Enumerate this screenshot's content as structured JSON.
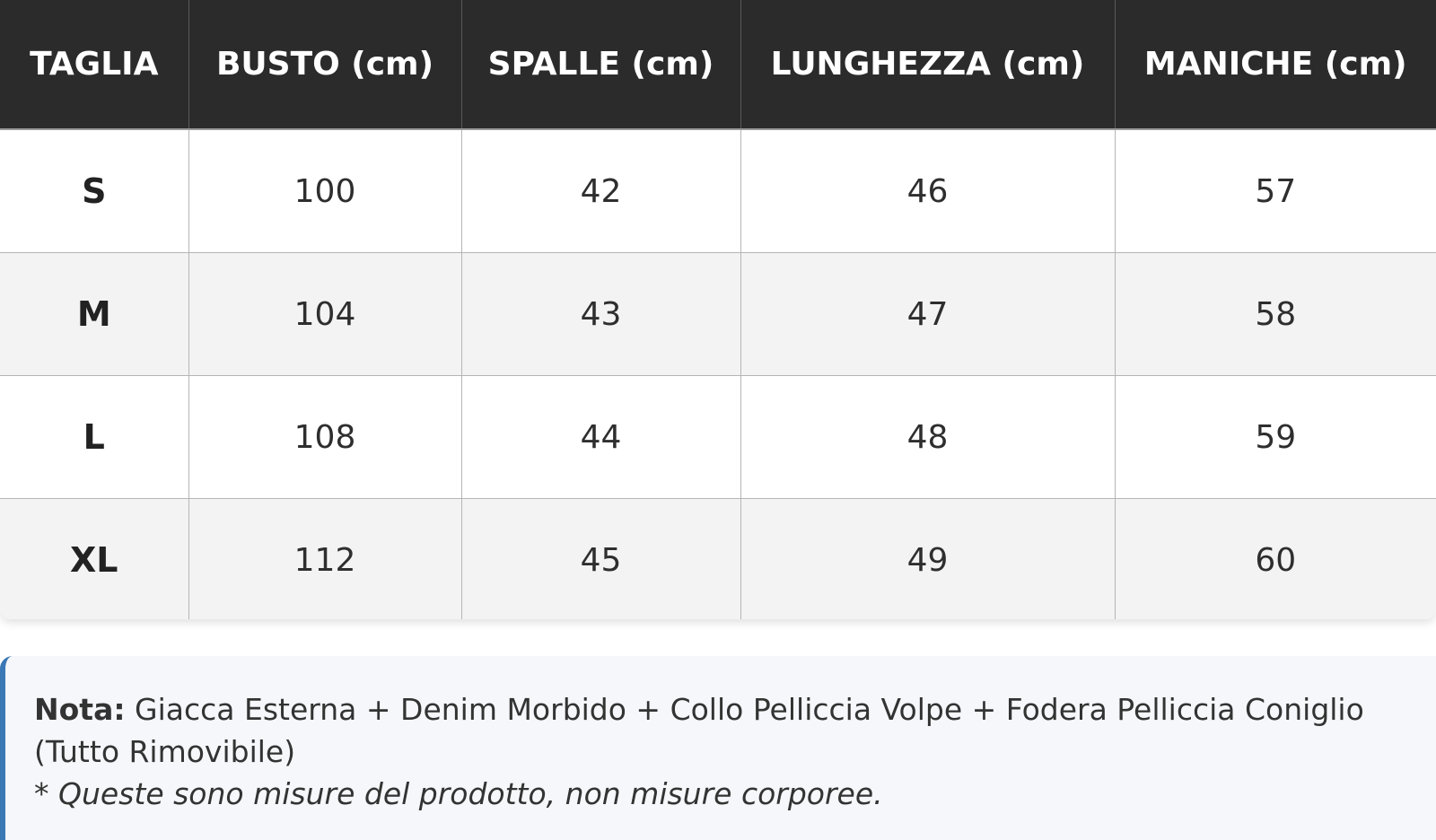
{
  "size_table": {
    "headers": [
      "TAGLIA",
      "BUSTO (cm)",
      "SPALLE (cm)",
      "LUNGHEZZA (cm)",
      "MANICHE (cm)"
    ],
    "rows": [
      [
        "S",
        "100",
        "42",
        "46",
        "57"
      ],
      [
        "M",
        "104",
        "43",
        "47",
        "58"
      ],
      [
        "L",
        "108",
        "44",
        "48",
        "59"
      ],
      [
        "XL",
        "112",
        "45",
        "49",
        "60"
      ]
    ],
    "colors": {
      "header_bg": "#2b2b2b",
      "header_text": "#ffffff",
      "alt_row_bg": "#f3f3f3"
    }
  },
  "note": {
    "label": "Nota:",
    "text": "Giacca Esterna + Denim Morbido + Collo Pelliccia Volpe + Fodera Pelliccia Coniglio (Tutto Rimovibile)",
    "disclaimer": "* Queste sono misure del prodotto, non misure corporee.",
    "accent_color": "#3a78b6"
  }
}
